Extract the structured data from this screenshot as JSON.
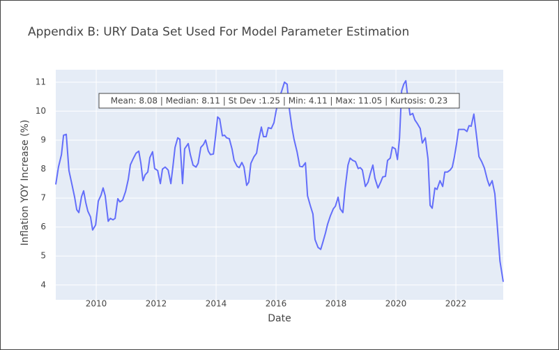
{
  "chart_data": {
    "type": "line",
    "title": "Appendix B: URY Data Set Used For Model Parameter Estimation",
    "x_label": "Date",
    "y_label": "Inflation YOY Increase (%)",
    "annotation": "Mean: 8.08 | Median: 8.11 | St Dev :1.25 | Min: 4.11 | Max: 11.05 | Kurtosis: 0.23",
    "grid": true,
    "xlim": [
      2008.65,
      2023.58
    ],
    "xticks": [
      2010,
      2012,
      2014,
      2016,
      2018,
      2020,
      2022
    ],
    "ylim": [
      3.49,
      11.43
    ],
    "yticks": [
      4,
      5,
      6,
      7,
      8,
      9,
      10,
      11
    ],
    "x": [
      2008.65,
      2008.74,
      2008.84,
      2008.91,
      2009.0,
      2009.09,
      2009.19,
      2009.28,
      2009.35,
      2009.42,
      2009.51,
      2009.58,
      2009.65,
      2009.72,
      2009.81,
      2009.88,
      2009.98,
      2010.07,
      2010.16,
      2010.23,
      2010.3,
      2010.4,
      2010.47,
      2010.56,
      2010.63,
      2010.72,
      2010.79,
      2010.88,
      2010.98,
      2011.07,
      2011.14,
      2011.23,
      2011.33,
      2011.42,
      2011.49,
      2011.56,
      2011.63,
      2011.72,
      2011.79,
      2011.88,
      2011.95,
      2012.05,
      2012.14,
      2012.21,
      2012.3,
      2012.4,
      2012.49,
      2012.56,
      2012.63,
      2012.72,
      2012.79,
      2012.88,
      2012.95,
      2013.07,
      2013.14,
      2013.23,
      2013.33,
      2013.4,
      2013.49,
      2013.58,
      2013.65,
      2013.74,
      2013.81,
      2013.91,
      2013.98,
      2014.05,
      2014.12,
      2014.21,
      2014.28,
      2014.35,
      2014.44,
      2014.53,
      2014.6,
      2014.7,
      2014.77,
      2014.86,
      2014.93,
      2015.02,
      2015.09,
      2015.16,
      2015.26,
      2015.35,
      2015.42,
      2015.51,
      2015.58,
      2015.67,
      2015.74,
      2015.84,
      2015.93,
      2016.0,
      2016.09,
      2016.19,
      2016.28,
      2016.37,
      2016.44,
      2016.53,
      2016.6,
      2016.7,
      2016.79,
      2016.88,
      2016.98,
      2017.05,
      2017.14,
      2017.23,
      2017.3,
      2017.4,
      2017.49,
      2017.56,
      2017.65,
      2017.72,
      2017.81,
      2017.91,
      2017.98,
      2018.07,
      2018.14,
      2018.23,
      2018.3,
      2018.4,
      2018.47,
      2018.56,
      2018.65,
      2018.74,
      2018.81,
      2018.88,
      2018.98,
      2019.07,
      2019.14,
      2019.23,
      2019.3,
      2019.4,
      2019.49,
      2019.56,
      2019.65,
      2019.72,
      2019.81,
      2019.88,
      2019.98,
      2020.05,
      2020.12,
      2020.19,
      2020.26,
      2020.33,
      2020.4,
      2020.47,
      2020.56,
      2020.63,
      2020.72,
      2020.81,
      2020.88,
      2020.98,
      2021.07,
      2021.14,
      2021.21,
      2021.3,
      2021.37,
      2021.47,
      2021.56,
      2021.63,
      2021.72,
      2021.81,
      2021.88,
      2021.95,
      2022.02,
      2022.09,
      2022.19,
      2022.28,
      2022.37,
      2022.44,
      2022.51,
      2022.6,
      2022.7,
      2022.77,
      2022.86,
      2022.95,
      2023.05,
      2023.12,
      2023.21,
      2023.3,
      2023.37,
      2023.47,
      2023.58
    ],
    "series": [
      {
        "color": "#636efa",
        "values": [
          7.47,
          8.07,
          8.5,
          9.17,
          9.2,
          7.95,
          7.47,
          7.03,
          6.6,
          6.5,
          7.05,
          7.25,
          6.85,
          6.55,
          6.35,
          5.9,
          6.07,
          6.9,
          7.1,
          7.35,
          7.08,
          6.2,
          6.3,
          6.25,
          6.3,
          6.98,
          6.87,
          6.93,
          7.23,
          7.65,
          8.15,
          8.35,
          8.55,
          8.62,
          8.2,
          7.6,
          7.8,
          7.9,
          8.4,
          8.6,
          8.02,
          7.95,
          7.5,
          8.0,
          8.07,
          7.97,
          7.5,
          8.1,
          8.75,
          9.08,
          9.03,
          7.5,
          8.7,
          8.88,
          8.5,
          8.14,
          8.07,
          8.2,
          8.75,
          8.85,
          9.0,
          8.62,
          8.5,
          8.52,
          9.12,
          9.8,
          9.73,
          9.15,
          9.17,
          9.08,
          9.05,
          8.7,
          8.3,
          8.1,
          8.05,
          8.23,
          8.07,
          7.44,
          7.55,
          8.2,
          8.42,
          8.55,
          9.0,
          9.45,
          9.12,
          9.12,
          9.43,
          9.4,
          9.6,
          10.0,
          10.4,
          10.7,
          11.0,
          10.93,
          10.1,
          9.43,
          9.03,
          8.6,
          8.1,
          8.08,
          8.22,
          7.08,
          6.75,
          6.45,
          5.57,
          5.3,
          5.23,
          5.47,
          5.8,
          6.1,
          6.38,
          6.63,
          6.72,
          7.03,
          6.63,
          6.5,
          7.3,
          8.14,
          8.38,
          8.3,
          8.26,
          8.02,
          8.05,
          7.97,
          7.4,
          7.55,
          7.83,
          8.14,
          7.68,
          7.35,
          7.55,
          7.73,
          7.75,
          8.3,
          8.38,
          8.76,
          8.7,
          8.33,
          9.08,
          10.7,
          10.93,
          11.05,
          10.42,
          9.87,
          9.92,
          9.7,
          9.56,
          9.4,
          8.9,
          9.08,
          8.35,
          6.75,
          6.65,
          7.35,
          7.3,
          7.6,
          7.4,
          7.9,
          7.9,
          7.97,
          8.07,
          8.42,
          8.86,
          9.37,
          9.37,
          9.37,
          9.3,
          9.5,
          9.48,
          9.9,
          9.05,
          8.43,
          8.26,
          8.04,
          7.63,
          7.42,
          7.6,
          7.15,
          6.2,
          4.83,
          4.11
        ]
      }
    ]
  }
}
